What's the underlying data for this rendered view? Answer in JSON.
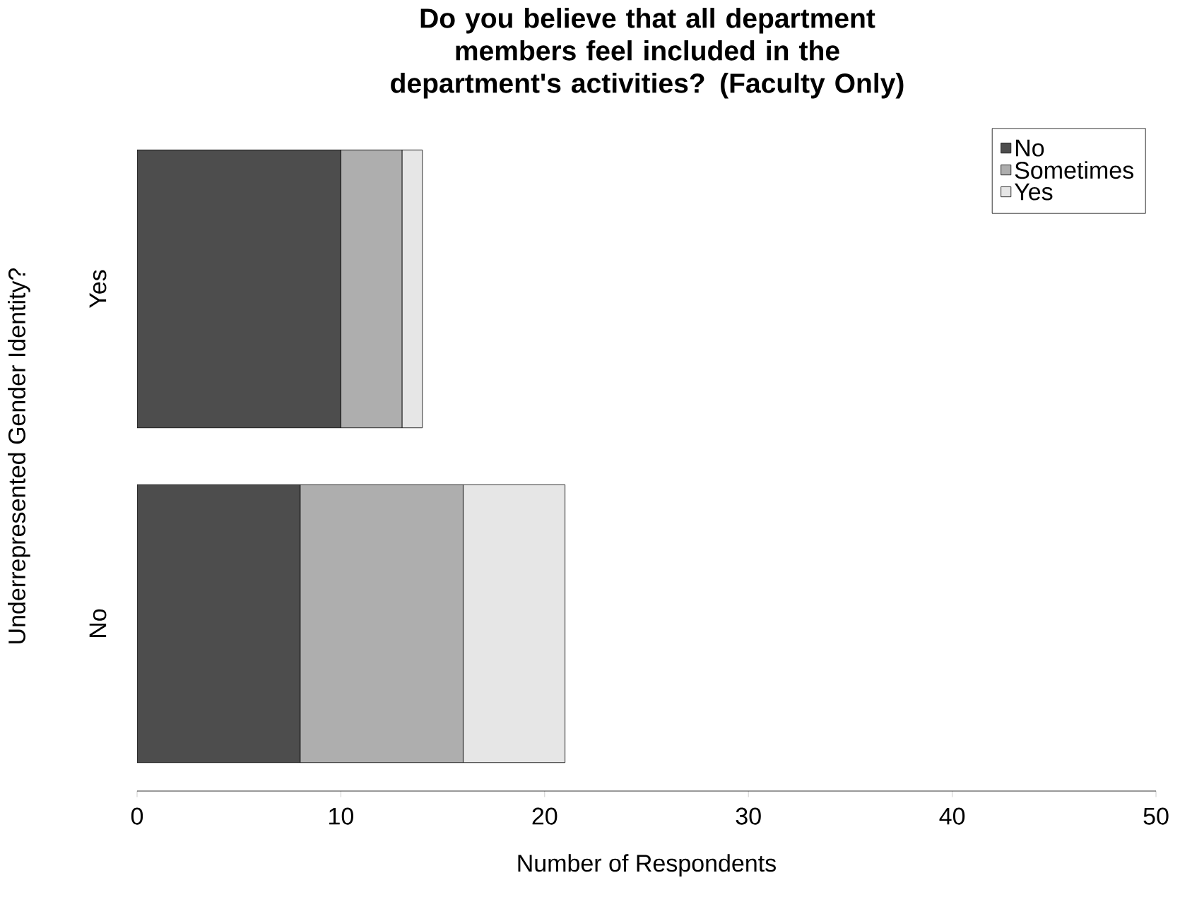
{
  "chart_data": {
    "type": "bar",
    "orientation": "horizontal",
    "stacked": true,
    "title": "Do you believe that all department members feel included in the department's activities? (Faculty Only)",
    "xlabel": "Number of Respondents",
    "ylabel": "Underrepresented Gender Identity?",
    "categories": [
      "Yes",
      "No"
    ],
    "series": [
      {
        "name": "No",
        "color": "#4d4d4d",
        "values": [
          10,
          8
        ]
      },
      {
        "name": "Sometimes",
        "color": "#aeaeae",
        "values": [
          3,
          8
        ]
      },
      {
        "name": "Yes",
        "color": "#e6e6e6",
        "values": [
          1,
          5
        ]
      }
    ],
    "xlim": [
      0,
      50
    ],
    "xticks": [
      0,
      10,
      20,
      30,
      40,
      50
    ],
    "legend": "top right"
  }
}
